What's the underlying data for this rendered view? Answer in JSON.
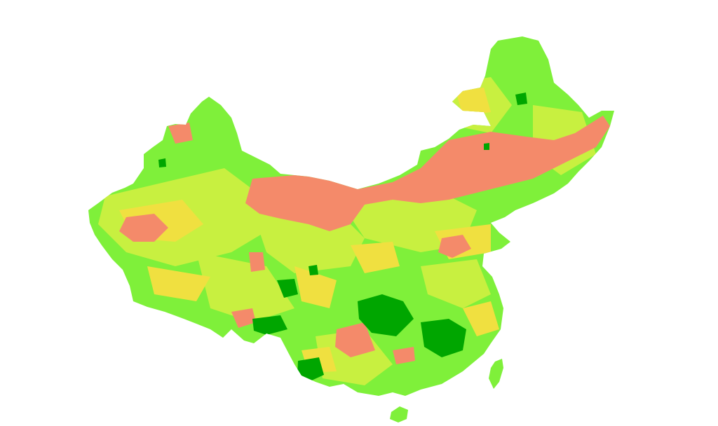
{
  "map": {
    "region": "China",
    "classes": [
      {
        "key": "very-high",
        "color": "#00a600"
      },
      {
        "key": "high",
        "color": "#7ff03a"
      },
      {
        "key": "medium",
        "color": "#c8f040"
      },
      {
        "key": "low",
        "color": "#f0e040"
      },
      {
        "key": "very-low",
        "color": "#f48a6a"
      }
    ],
    "background": "#ffffff"
  }
}
